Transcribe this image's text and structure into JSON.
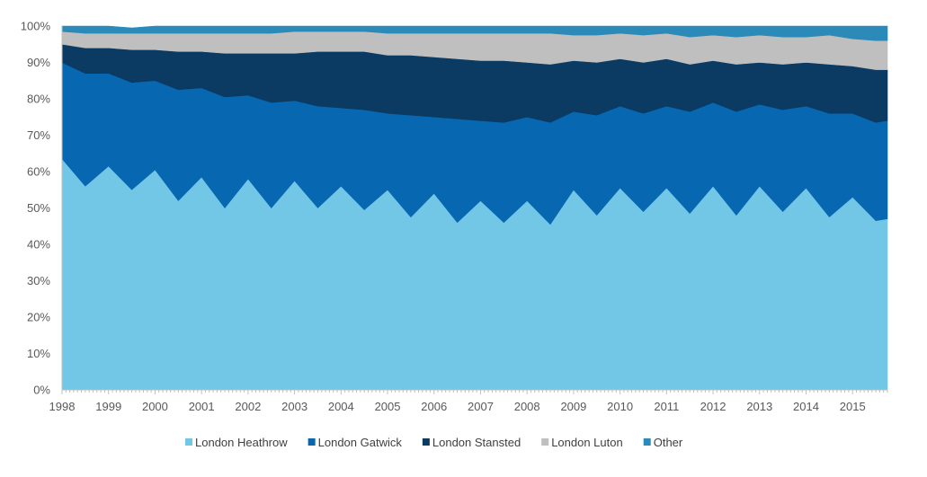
{
  "chart_data": {
    "type": "area",
    "stacked": "percent",
    "title": "",
    "xlabel": "",
    "ylabel": "",
    "ylim": [
      0,
      100
    ],
    "y_ticks": [
      "0%",
      "10%",
      "20%",
      "30%",
      "40%",
      "50%",
      "60%",
      "70%",
      "80%",
      "90%",
      "100%"
    ],
    "x_ticks": [
      "1998",
      "1999",
      "2000",
      "2001",
      "2002",
      "2003",
      "2004",
      "2005",
      "2006",
      "2007",
      "2008",
      "2009",
      "2010",
      "2011",
      "2012",
      "2013",
      "2014",
      "2015"
    ],
    "grid": false,
    "legend_position": "bottom",
    "x": [
      1998.0,
      1998.5,
      1999.0,
      1999.5,
      2000.0,
      2000.5,
      2001.0,
      2001.5,
      2002.0,
      2002.5,
      2003.0,
      2003.5,
      2004.0,
      2004.5,
      2005.0,
      2005.5,
      2006.0,
      2006.5,
      2007.0,
      2007.5,
      2008.0,
      2008.5,
      2009.0,
      2009.5,
      2010.0,
      2010.5,
      2011.0,
      2011.5,
      2012.0,
      2012.5,
      2013.0,
      2013.5,
      2014.0,
      2014.5,
      2015.0,
      2015.5,
      2015.75
    ],
    "series": [
      {
        "name": "London Heathrow",
        "color": "#72C6E6",
        "values": [
          63.5,
          56,
          61.5,
          55,
          60.5,
          52,
          58.5,
          50,
          58,
          50,
          57.5,
          50,
          56,
          49.5,
          55,
          47.5,
          54,
          46,
          52,
          46,
          52,
          45.5,
          55,
          48,
          55.5,
          49,
          55.5,
          48.5,
          56,
          48,
          56,
          49,
          55.5,
          47.5,
          53,
          46.5,
          47
        ]
      },
      {
        "name": "London Gatwick",
        "color": "#0767B1",
        "values": [
          26.5,
          31,
          25.5,
          29.5,
          24.5,
          30.5,
          24.5,
          30.5,
          23,
          29,
          22,
          28,
          21.5,
          27.5,
          21,
          28,
          21,
          28.5,
          22,
          27.5,
          23,
          28,
          21.5,
          27.5,
          22.5,
          27,
          22.5,
          28,
          23,
          28.5,
          22.5,
          28,
          22.5,
          28.5,
          23,
          27,
          27
        ]
      },
      {
        "name": "London Stansted",
        "color": "#0B3A62",
        "values": [
          5,
          7,
          7,
          9,
          8.5,
          10.5,
          10,
          12,
          11.5,
          13.5,
          13,
          15,
          15.5,
          16,
          16,
          16.5,
          16.5,
          16.5,
          16.5,
          17,
          15,
          16,
          14,
          14.5,
          13,
          14,
          13,
          13,
          11.5,
          13,
          11.5,
          12.5,
          12,
          13.5,
          13,
          14.5,
          14
        ]
      },
      {
        "name": "London Luton",
        "color": "#BFBFBF",
        "values": [
          3.5,
          4,
          4,
          4.5,
          4.5,
          5,
          5,
          5.5,
          5.5,
          5.5,
          6,
          5.5,
          5.5,
          5.5,
          6,
          6,
          6.5,
          7,
          7.5,
          7.5,
          8,
          8.5,
          7,
          7.5,
          7,
          7.5,
          7,
          7.5,
          7,
          7.5,
          7.5,
          7.5,
          7,
          8,
          7.5,
          8,
          8
        ]
      },
      {
        "name": "Other",
        "color": "#2B8AB8",
        "values": [
          1.5,
          2,
          2,
          1.5,
          2,
          2,
          2,
          2,
          2,
          2,
          1.5,
          1.5,
          1.5,
          1.5,
          2,
          2,
          2,
          2,
          2,
          2,
          2,
          2,
          2.5,
          2.5,
          2,
          2.5,
          2,
          3,
          2.5,
          3,
          2.5,
          3,
          3,
          2.5,
          3.5,
          4,
          4
        ]
      }
    ]
  }
}
